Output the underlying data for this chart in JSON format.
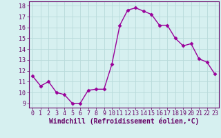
{
  "x": [
    0,
    1,
    2,
    3,
    4,
    5,
    6,
    7,
    8,
    9,
    10,
    11,
    12,
    13,
    14,
    15,
    16,
    17,
    18,
    19,
    20,
    21,
    22,
    23
  ],
  "y": [
    11.5,
    10.6,
    11.0,
    10.0,
    9.8,
    9.0,
    9.0,
    10.2,
    10.3,
    10.3,
    12.6,
    16.2,
    17.6,
    17.8,
    17.5,
    17.2,
    16.2,
    16.2,
    15.0,
    14.3,
    14.5,
    13.1,
    12.8,
    11.7
  ],
  "line_color": "#990099",
  "marker": "D",
  "markersize": 2.5,
  "linewidth": 1.0,
  "xlabel": "Windchill (Refroidissement éolien,°C)",
  "xlabel_fontsize": 7,
  "xticks": [
    0,
    1,
    2,
    3,
    4,
    5,
    6,
    7,
    8,
    9,
    10,
    11,
    12,
    13,
    14,
    15,
    16,
    17,
    18,
    19,
    20,
    21,
    22,
    23
  ],
  "yticks": [
    9,
    10,
    11,
    12,
    13,
    14,
    15,
    16,
    17,
    18
  ],
  "xlim": [
    -0.5,
    23.5
  ],
  "ylim": [
    8.6,
    18.4
  ],
  "bg_color": "#d6f0f0",
  "grid_color": "#b8dada",
  "tick_fontsize": 6,
  "tick_label_color": "#660066",
  "spine_color": "#660066"
}
